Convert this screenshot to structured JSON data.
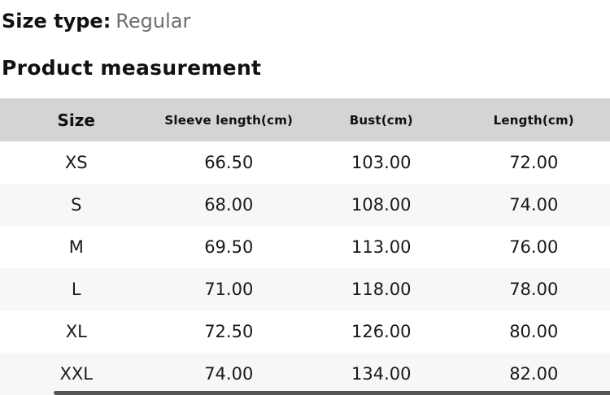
{
  "header": {
    "size_type_label": "Size type:",
    "size_type_value": "Regular",
    "section_title": "Product measurement"
  },
  "table": {
    "columns": [
      "Size",
      "Sleeve length(cm)",
      "Bust(cm)",
      "Length(cm)"
    ],
    "rows": [
      {
        "size": "XS",
        "sleeve_length_cm": "66.50",
        "bust_cm": "103.00",
        "length_cm": "72.00"
      },
      {
        "size": "S",
        "sleeve_length_cm": "68.00",
        "bust_cm": "108.00",
        "length_cm": "74.00"
      },
      {
        "size": "M",
        "sleeve_length_cm": "69.50",
        "bust_cm": "113.00",
        "length_cm": "76.00"
      },
      {
        "size": "L",
        "sleeve_length_cm": "71.00",
        "bust_cm": "118.00",
        "length_cm": "78.00"
      },
      {
        "size": "XL",
        "sleeve_length_cm": "72.50",
        "bust_cm": "126.00",
        "length_cm": "80.00"
      },
      {
        "size": "XXL",
        "sleeve_length_cm": "74.00",
        "bust_cm": "134.00",
        "length_cm": "82.00"
      }
    ]
  },
  "colors": {
    "table_header_bg": "#d4d4d4",
    "row_alt_bg": "#f7f7f7",
    "text_primary": "#111111",
    "text_secondary": "#6e6e6e",
    "scrollbar_thumb": "#555555"
  }
}
